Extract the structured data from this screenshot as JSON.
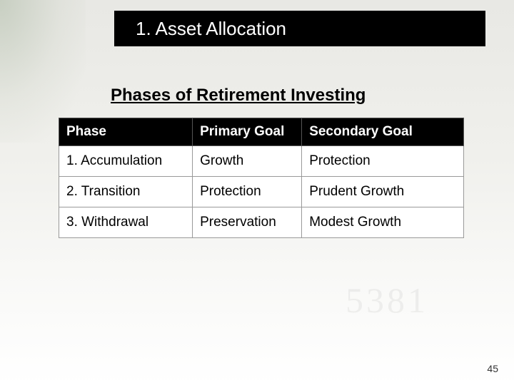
{
  "title": "1. Asset Allocation",
  "subtitle": "Phases of Retirement Investing",
  "table": {
    "columns": [
      {
        "label": "Phase",
        "class": "col-phase"
      },
      {
        "label": "Primary Goal",
        "class": "col-primary"
      },
      {
        "label": "Secondary Goal",
        "class": "col-secondary"
      }
    ],
    "rows": [
      {
        "phase": "1. Accumulation",
        "primary": "Growth",
        "secondary": "Protection"
      },
      {
        "phase": "2. Transition",
        "primary": "Protection",
        "secondary": "Prudent Growth"
      },
      {
        "phase": "3. Withdrawal",
        "primary": "Preservation",
        "secondary": "Modest Growth"
      }
    ]
  },
  "page_number": "45",
  "styling": {
    "title_bar_bg": "#000000",
    "title_text_color": "#ffffff",
    "title_fontsize": 26,
    "subtitle_fontsize": 24,
    "subtitle_color": "#000000",
    "th_bg": "#000000",
    "th_color": "#ffffff",
    "td_bg": "#ffffff",
    "td_color": "#000000",
    "cell_fontsize": 19,
    "border_color": "#999999",
    "page_bg_gradient": [
      "#e8e8e4",
      "#ffffff"
    ]
  }
}
